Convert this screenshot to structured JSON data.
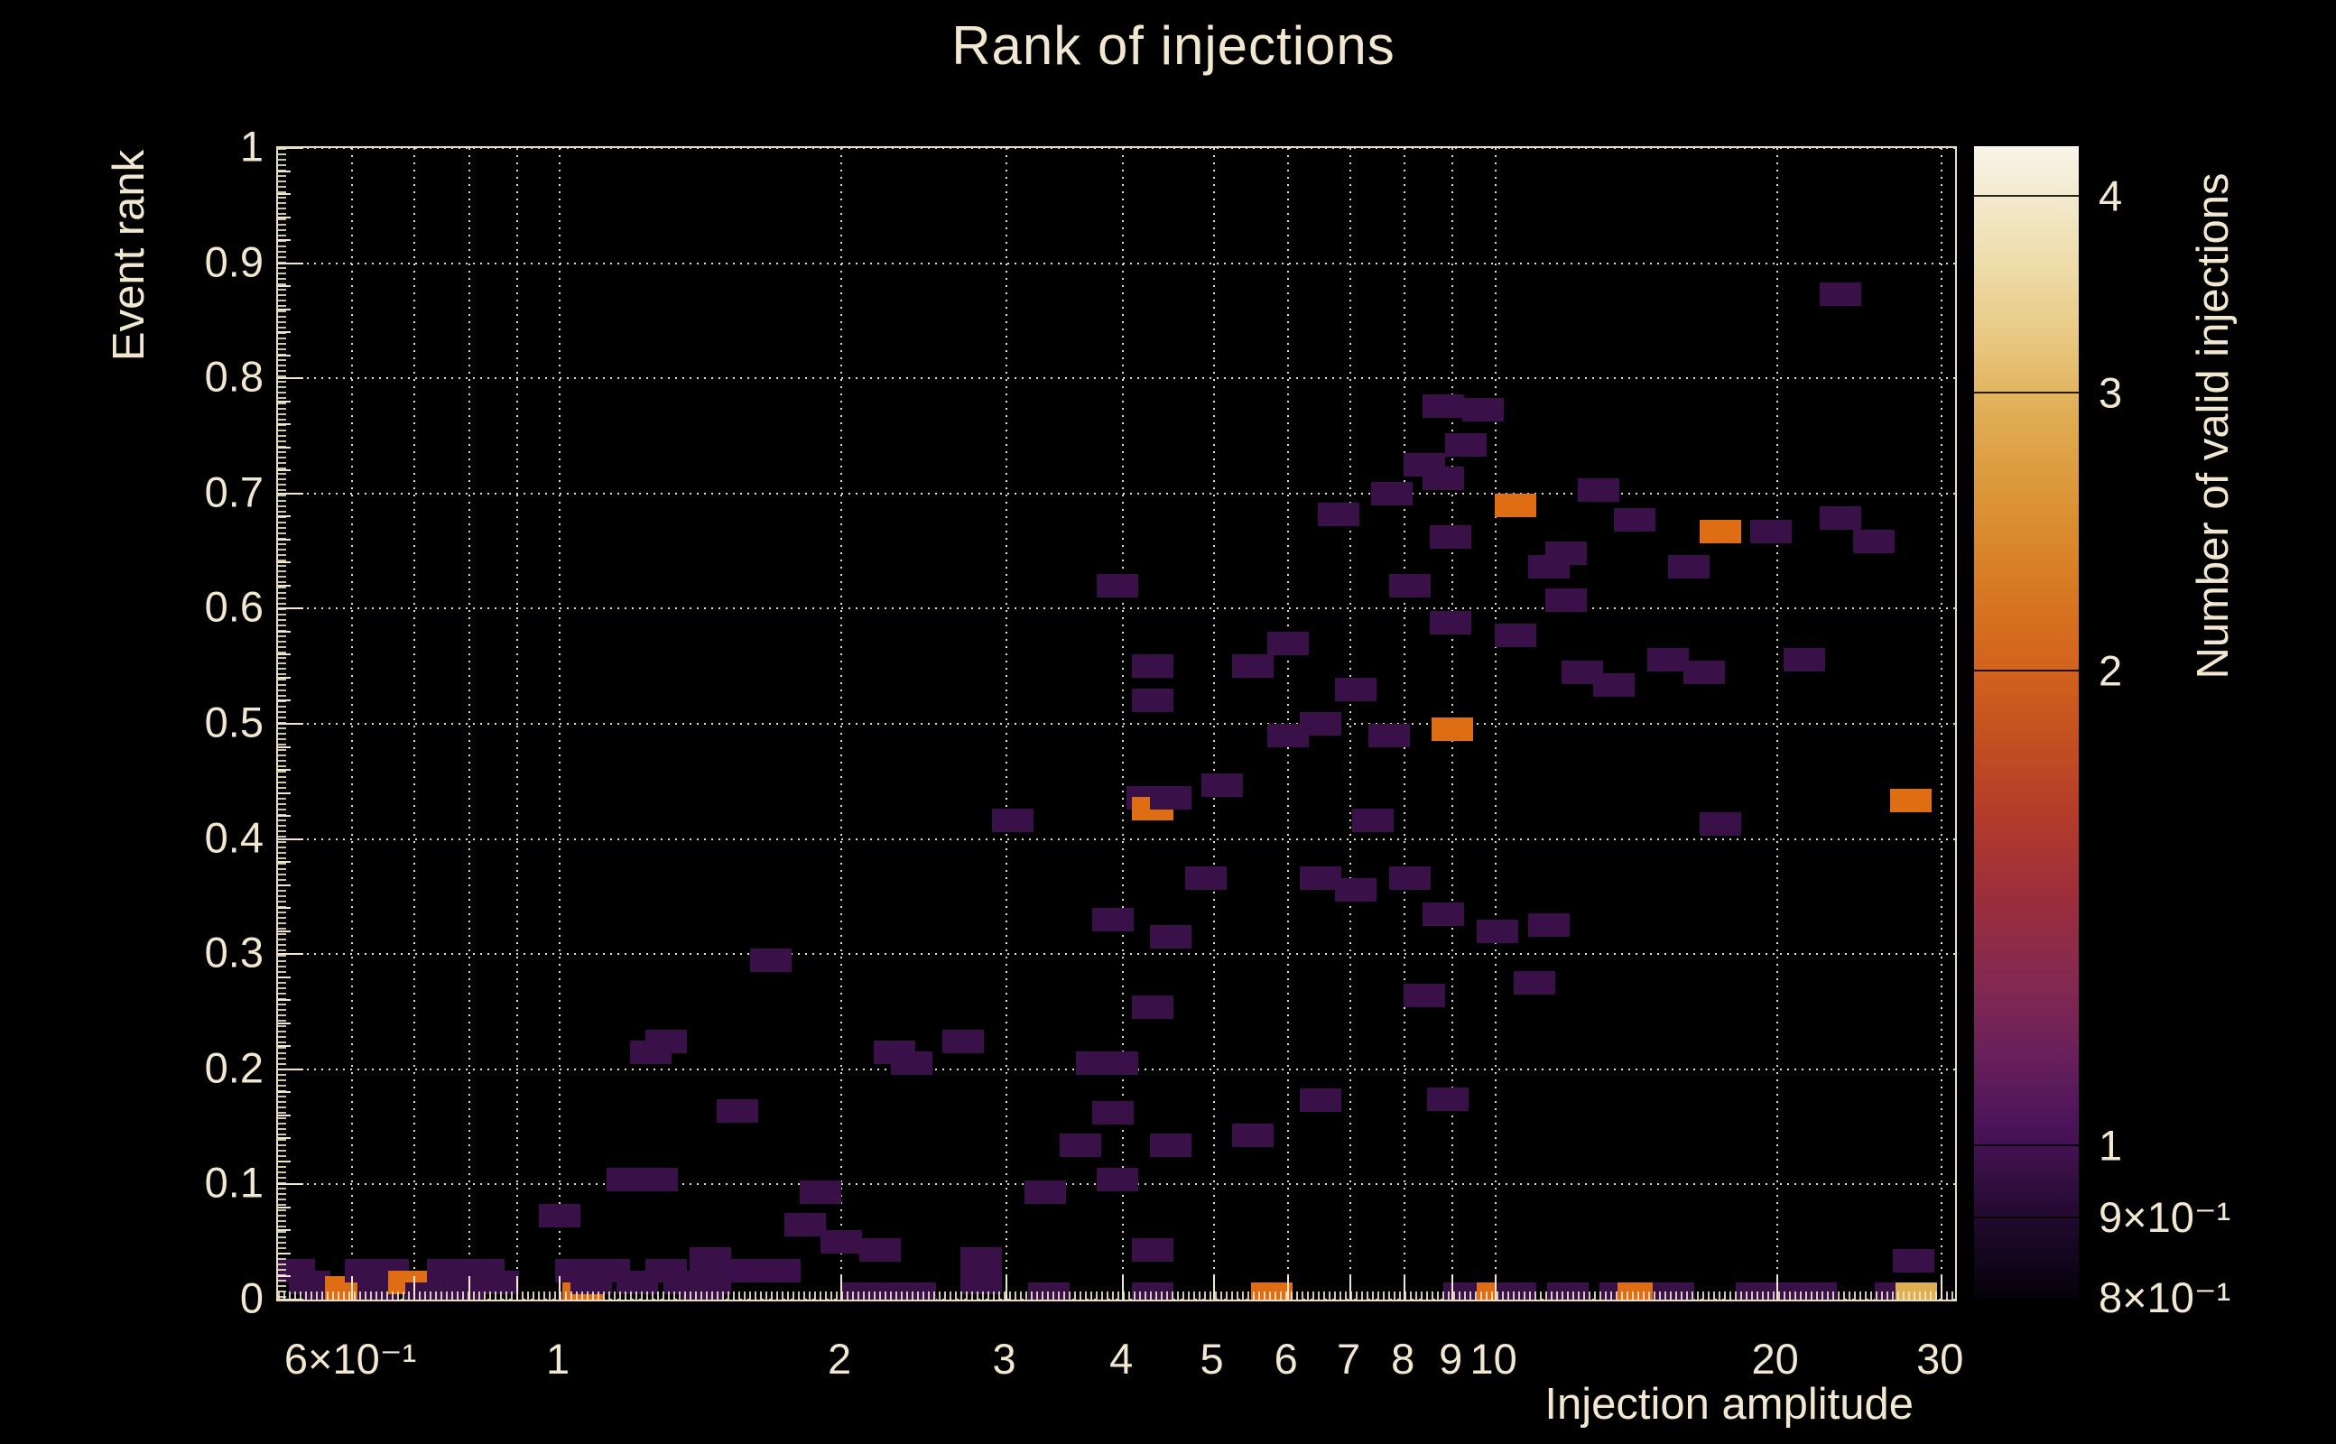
{
  "title": "Rank of injections",
  "colors": {
    "background": "#000000",
    "foreground": "#f1e8cf",
    "count1": "#3a1048",
    "count2": "#df6d14",
    "count3": "#dfb052"
  },
  "chart_data": {
    "type": "heatmap",
    "title": "Rank of injections",
    "xlabel": "Injection amplitude",
    "ylabel": "Event rank",
    "zlabel": "Number of valid injections",
    "x_scale": "log",
    "xlim": [
      0.5,
      31
    ],
    "ylim": [
      0,
      1
    ],
    "z_scale": "log",
    "zlim": [
      0.8,
      4.3
    ],
    "grid": true,
    "legend_position": "right-colorbar",
    "x_ticks": [
      {
        "v": 0.6,
        "label": "6×10⁻¹"
      },
      {
        "v": 0.7,
        "label": ""
      },
      {
        "v": 0.8,
        "label": ""
      },
      {
        "v": 0.9,
        "label": ""
      },
      {
        "v": 1,
        "label": "1"
      },
      {
        "v": 2,
        "label": "2"
      },
      {
        "v": 3,
        "label": "3"
      },
      {
        "v": 4,
        "label": "4"
      },
      {
        "v": 5,
        "label": "5"
      },
      {
        "v": 6,
        "label": "6"
      },
      {
        "v": 7,
        "label": "7"
      },
      {
        "v": 8,
        "label": "8"
      },
      {
        "v": 9,
        "label": "9"
      },
      {
        "v": 10,
        "label": "10"
      },
      {
        "v": 20,
        "label": "20"
      },
      {
        "v": 30,
        "label": "30"
      }
    ],
    "y_ticks": [
      {
        "v": 0,
        "label": "0"
      },
      {
        "v": 0.1,
        "label": "0.1"
      },
      {
        "v": 0.2,
        "label": "0.2"
      },
      {
        "v": 0.3,
        "label": "0.3"
      },
      {
        "v": 0.4,
        "label": "0.4"
      },
      {
        "v": 0.5,
        "label": "0.5"
      },
      {
        "v": 0.6,
        "label": "0.6"
      },
      {
        "v": 0.7,
        "label": "0.7"
      },
      {
        "v": 0.8,
        "label": "0.8"
      },
      {
        "v": 0.9,
        "label": "0.9"
      },
      {
        "v": 1,
        "label": "1"
      }
    ],
    "z_ticks": [
      {
        "v": 4,
        "label": "4"
      },
      {
        "v": 3,
        "label": "3"
      },
      {
        "v": 2,
        "label": "2"
      },
      {
        "v": 1,
        "label": "1"
      },
      {
        "v": 0.9,
        "label": "9×10⁻¹"
      },
      {
        "v": 0.8,
        "label": "8×10⁻¹"
      }
    ],
    "colorbar_stops": [
      {
        "pos": 0,
        "color": "#f8f4e8"
      },
      {
        "pos": 4,
        "color": "#f3ead0"
      },
      {
        "pos": 10,
        "color": "#eeddab"
      },
      {
        "pos": 17,
        "color": "#e7c77f"
      },
      {
        "pos": 23,
        "color": "#e0ae55"
      },
      {
        "pos": 30,
        "color": "#dc9739"
      },
      {
        "pos": 37,
        "color": "#d87e26"
      },
      {
        "pos": 44,
        "color": "#d4671d"
      },
      {
        "pos": 51,
        "color": "#c65120"
      },
      {
        "pos": 58,
        "color": "#b33c2a"
      },
      {
        "pos": 65,
        "color": "#9d2e3b"
      },
      {
        "pos": 72,
        "color": "#862950"
      },
      {
        "pos": 79,
        "color": "#68205a"
      },
      {
        "pos": 85,
        "color": "#4b145a"
      },
      {
        "pos": 88.5,
        "color": "#3a1048"
      },
      {
        "pos": 93,
        "color": "#23092f"
      },
      {
        "pos": 97,
        "color": "#10051a"
      },
      {
        "pos": 100,
        "color": "#05020a"
      }
    ],
    "points": [
      [
        0.52,
        0.025,
        1
      ],
      [
        0.54,
        0.015,
        1
      ],
      [
        0.56,
        0.005,
        1
      ],
      [
        0.59,
        0.01,
        2
      ],
      [
        0.62,
        0.025,
        1
      ],
      [
        0.64,
        0.005,
        1
      ],
      [
        0.655,
        0.025,
        1
      ],
      [
        0.655,
        0.015,
        1
      ],
      [
        0.69,
        0.015,
        2
      ],
      [
        0.72,
        0.005,
        1
      ],
      [
        0.76,
        0.025,
        1
      ],
      [
        0.79,
        0.005,
        1
      ],
      [
        0.83,
        0.025,
        1
      ],
      [
        0.86,
        0.015,
        1
      ],
      [
        1.0,
        0.073,
        1
      ],
      [
        1.04,
        0.025,
        1
      ],
      [
        1.06,
        0.005,
        2
      ],
      [
        1.08,
        0.015,
        1
      ],
      [
        1.13,
        0.025,
        1
      ],
      [
        1.21,
        0.015,
        1
      ],
      [
        1.3,
        0.025,
        1
      ],
      [
        1.36,
        0.015,
        1
      ],
      [
        1.42,
        0.005,
        1
      ],
      [
        1.45,
        0.015,
        1
      ],
      [
        1.45,
        0.035,
        1
      ],
      [
        1.55,
        0.025,
        1
      ],
      [
        1.65,
        0.025,
        1
      ],
      [
        1.72,
        0.025,
        1
      ],
      [
        1.83,
        0.065,
        1
      ],
      [
        2.0,
        0.05,
        1
      ],
      [
        2.1,
        0.005,
        1
      ],
      [
        2.2,
        0.043,
        1
      ],
      [
        2.28,
        0.005,
        1
      ],
      [
        2.4,
        0.005,
        1
      ],
      [
        2.82,
        0.015,
        1
      ],
      [
        2.82,
        0.035,
        1
      ],
      [
        3.33,
        0.005,
        1
      ],
      [
        4.3,
        0.043,
        1
      ],
      [
        4.3,
        0.005,
        1
      ],
      [
        5.77,
        0.005,
        2
      ],
      [
        9.26,
        0.005,
        1
      ],
      [
        10.05,
        0.005,
        2
      ],
      [
        10.5,
        0.005,
        1
      ],
      [
        11.95,
        0.005,
        1
      ],
      [
        13.6,
        0.005,
        1
      ],
      [
        14.2,
        0.005,
        2
      ],
      [
        15.5,
        0.005,
        1
      ],
      [
        19,
        0.005,
        1
      ],
      [
        20.5,
        0.005,
        1
      ],
      [
        22,
        0.005,
        1
      ],
      [
        26.8,
        0.005,
        1
      ],
      [
        28.2,
        0.005,
        3
      ],
      [
        28,
        0.034,
        1
      ],
      [
        1.18,
        0.104,
        1
      ],
      [
        1.27,
        0.104,
        1
      ],
      [
        1.25,
        0.215,
        1
      ],
      [
        1.3,
        0.224,
        1
      ],
      [
        1.55,
        0.164,
        1
      ],
      [
        1.68,
        0.295,
        1
      ],
      [
        1.9,
        0.093,
        1
      ],
      [
        2.28,
        0.215,
        1
      ],
      [
        2.38,
        0.205,
        1
      ],
      [
        2.7,
        0.224,
        1
      ],
      [
        3.3,
        0.093,
        1
      ],
      [
        3.6,
        0.134,
        1
      ],
      [
        3.75,
        0.205,
        1
      ],
      [
        3.95,
        0.205,
        1
      ],
      [
        3.9,
        0.162,
        1
      ],
      [
        3.95,
        0.104,
        1
      ],
      [
        4.3,
        0.254,
        1
      ],
      [
        4.5,
        0.134,
        1
      ],
      [
        4.5,
        0.315,
        1
      ],
      [
        5.5,
        0.143,
        1
      ],
      [
        6.5,
        0.173,
        1
      ],
      [
        8.4,
        0.264,
        1
      ],
      [
        8.9,
        0.174,
        1
      ],
      [
        10.05,
        0.32,
        1
      ],
      [
        11.0,
        0.275,
        1
      ],
      [
        11.4,
        0.325,
        1
      ],
      [
        3.05,
        0.416,
        1
      ],
      [
        3.9,
        0.33,
        1
      ],
      [
        3.95,
        0.62,
        1
      ],
      [
        4.25,
        0.436,
        1
      ],
      [
        4.3,
        0.426,
        2
      ],
      [
        4.3,
        0.52,
        1
      ],
      [
        4.3,
        0.55,
        1
      ],
      [
        4.5,
        0.436,
        1
      ],
      [
        4.9,
        0.366,
        1
      ],
      [
        5.1,
        0.447,
        1
      ],
      [
        5.5,
        0.55,
        1
      ],
      [
        6.0,
        0.49,
        1
      ],
      [
        6.0,
        0.57,
        1
      ],
      [
        6.5,
        0.366,
        1
      ],
      [
        6.5,
        0.5,
        1
      ],
      [
        6.8,
        0.682,
        1
      ],
      [
        7.1,
        0.356,
        1
      ],
      [
        7.1,
        0.53,
        1
      ],
      [
        7.4,
        0.416,
        1
      ],
      [
        7.7,
        0.49,
        1
      ],
      [
        7.75,
        0.7,
        1
      ],
      [
        8.1,
        0.366,
        1
      ],
      [
        8.1,
        0.62,
        1
      ],
      [
        8.4,
        0.725,
        1
      ],
      [
        8.8,
        0.335,
        1
      ],
      [
        8.8,
        0.713,
        1
      ],
      [
        8.8,
        0.776,
        1
      ],
      [
        8.95,
        0.588,
        1
      ],
      [
        8.95,
        0.662,
        1
      ],
      [
        9.0,
        0.495,
        2
      ],
      [
        9.3,
        0.742,
        1
      ],
      [
        9.7,
        0.773,
        1
      ],
      [
        10.5,
        0.577,
        1
      ],
      [
        10.5,
        0.69,
        2
      ],
      [
        11.4,
        0.636,
        1
      ],
      [
        11.9,
        0.607,
        1
      ],
      [
        11.9,
        0.648,
        1
      ],
      [
        12.4,
        0.545,
        1
      ],
      [
        12.9,
        0.703,
        1
      ],
      [
        13.4,
        0.534,
        1
      ],
      [
        14.1,
        0.677,
        1
      ],
      [
        15.3,
        0.556,
        1
      ],
      [
        16.1,
        0.636,
        1
      ],
      [
        16.7,
        0.545,
        1
      ],
      [
        17.4,
        0.413,
        1
      ],
      [
        17.4,
        0.667,
        2
      ],
      [
        19.7,
        0.667,
        1
      ],
      [
        21.4,
        0.556,
        1
      ],
      [
        23.4,
        0.679,
        1
      ],
      [
        23.4,
        0.873,
        1
      ],
      [
        25.4,
        0.658,
        1
      ],
      [
        27.8,
        0.433,
        2
      ]
    ]
  }
}
